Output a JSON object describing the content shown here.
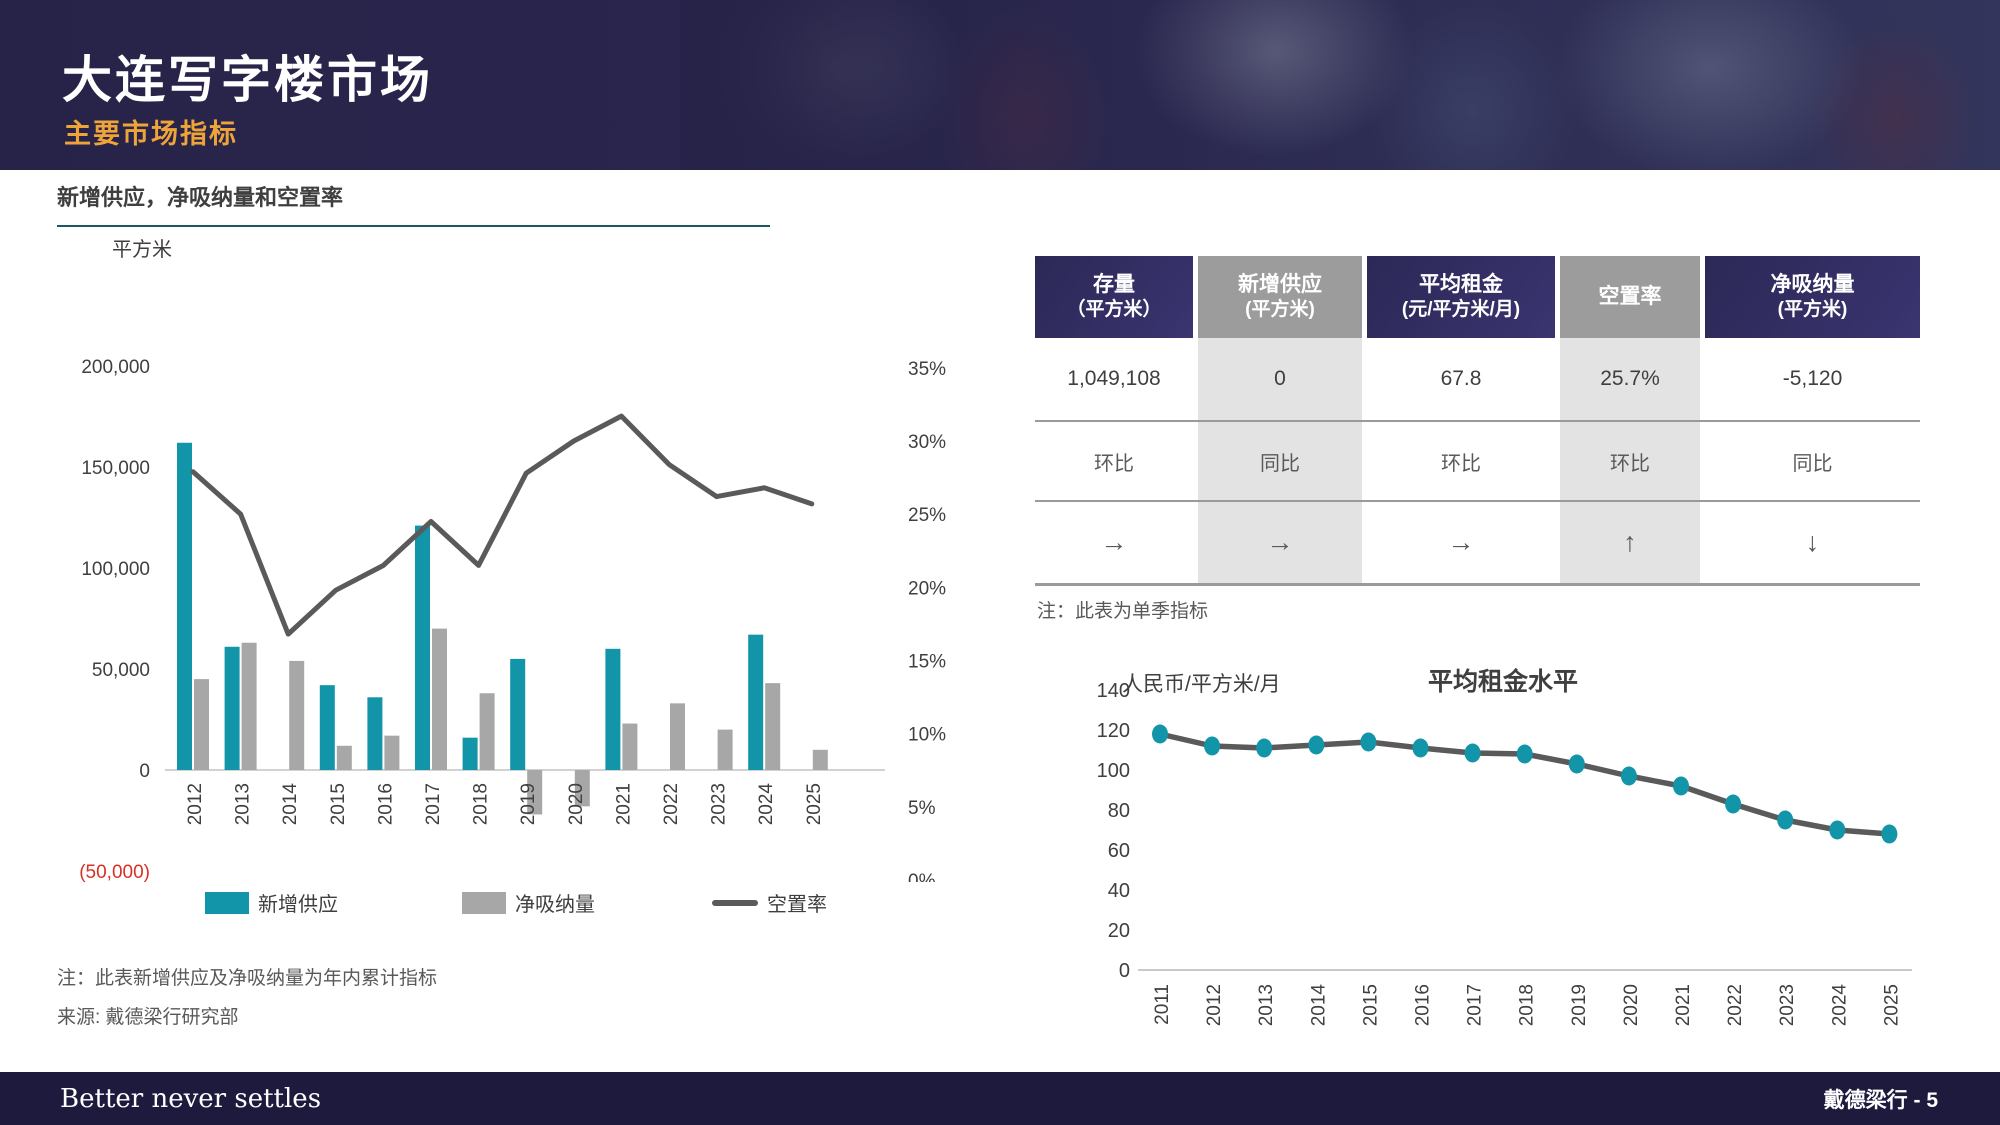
{
  "header": {
    "title": "大连写字楼市场",
    "subtitle": "主要市场指标"
  },
  "left_panel": {
    "section_title": "新增供应，净吸纳量和空置率",
    "unit_label": "平方米",
    "legend": [
      {
        "label": "新增供应"
      },
      {
        "label": "净吸纳量"
      },
      {
        "label": "空置率"
      }
    ],
    "note1": "注：此表新增供应及净吸纳量为年内累计指标",
    "note2": "来源: 戴德梁行研究部"
  },
  "table": {
    "columns": [
      {
        "title": "存量",
        "subtitle": "（平方米）"
      },
      {
        "title": "新增供应",
        "subtitle": "(平方米)"
      },
      {
        "title": "平均租金",
        "subtitle": "(元/平方米/月)"
      },
      {
        "title": "空置率",
        "subtitle": ""
      },
      {
        "title": "净吸纳量",
        "subtitle": "(平方米)"
      }
    ],
    "values": [
      "1,049,108",
      "0",
      "67.8",
      "25.7%",
      "-5,120"
    ],
    "compare_labels": [
      "环比",
      "同比",
      "环比",
      "环比",
      "同比"
    ],
    "trend_arrows": [
      "→",
      "→",
      "→",
      "↑",
      "↓"
    ],
    "note": "注：此表为单季指标"
  },
  "rent_chart_labels": {
    "title": "平均租金水平",
    "unit_label": "人民币/平方米/月"
  },
  "footer": {
    "tagline": "Better never settles",
    "page_label": "戴德梁行 - 5"
  },
  "colors": {
    "accent_teal": "#1295a8",
    "bar_gray": "#a7a7a7",
    "line_gray": "#5a5a5a",
    "header_navy": "#272348",
    "accent_orange": "#efa439",
    "table_navy": "#322e61",
    "table_header_gray": "#9c9c9c",
    "table_light_gray": "#e3e3e3",
    "negative_red": "#d93025",
    "footer_navy": "#1d1a3e"
  },
  "chart_data": [
    {
      "type": "bar",
      "title": "新增供应，净吸纳量和空置率",
      "categories": [
        "2012",
        "2013",
        "2014",
        "2015",
        "2016",
        "2017",
        "2018",
        "2019",
        "2020",
        "2021",
        "2022",
        "2023",
        "2024",
        "2025"
      ],
      "series": [
        {
          "name": "新增供应",
          "type": "bar",
          "axis": "left",
          "color": "#1295a8",
          "values": [
            162000,
            61000,
            0,
            42000,
            36000,
            121000,
            16000,
            55000,
            0,
            60000,
            0,
            0,
            67000,
            0
          ]
        },
        {
          "name": "净吸纳量",
          "type": "bar",
          "axis": "left",
          "color": "#a7a7a7",
          "values": [
            45000,
            63000,
            54000,
            12000,
            17000,
            70000,
            38000,
            -22000,
            -18000,
            23000,
            33000,
            20000,
            43000,
            10000
          ]
        },
        {
          "name": "空置率",
          "type": "line",
          "axis": "right",
          "color": "#5a5a5a",
          "values": [
            27.9,
            25.0,
            16.8,
            19.8,
            21.5,
            24.5,
            21.5,
            27.8,
            30.0,
            31.7,
            28.4,
            26.2,
            26.8,
            25.7
          ]
        }
      ],
      "left_axis": {
        "unit": "平方米",
        "min": -50000,
        "max": 200000,
        "step": 50000,
        "ticks": [
          {
            "label": "200,000",
            "value": 200000
          },
          {
            "label": "150,000",
            "value": 150000
          },
          {
            "label": "100,000",
            "value": 100000
          },
          {
            "label": "50,000",
            "value": 50000
          },
          {
            "label": "0",
            "value": 0
          },
          {
            "label": "(50,000)",
            "value": -50000,
            "negative": true
          }
        ]
      },
      "right_axis": {
        "unit": "%",
        "min": 0,
        "max": 35,
        "step": 5,
        "ticks": [
          35,
          30,
          25,
          20,
          15,
          10,
          5,
          0
        ]
      },
      "grid": false,
      "legend_position": "bottom"
    },
    {
      "type": "line",
      "title": "平均租金水平",
      "ylabel": "人民币/平方米/月",
      "categories": [
        "2011",
        "2012",
        "2013",
        "2014",
        "2015",
        "2016",
        "2017",
        "2018",
        "2019",
        "2020",
        "2021",
        "2022",
        "2023",
        "2024",
        "2025"
      ],
      "values": [
        118,
        112,
        111,
        112.5,
        114,
        111,
        108.5,
        108,
        103,
        97,
        92,
        83,
        75,
        70,
        68
      ],
      "ylim": [
        0,
        140
      ],
      "ystep": 20,
      "line_color": "#5a5a5a",
      "dot_color": "#1295a8",
      "grid": false
    }
  ]
}
